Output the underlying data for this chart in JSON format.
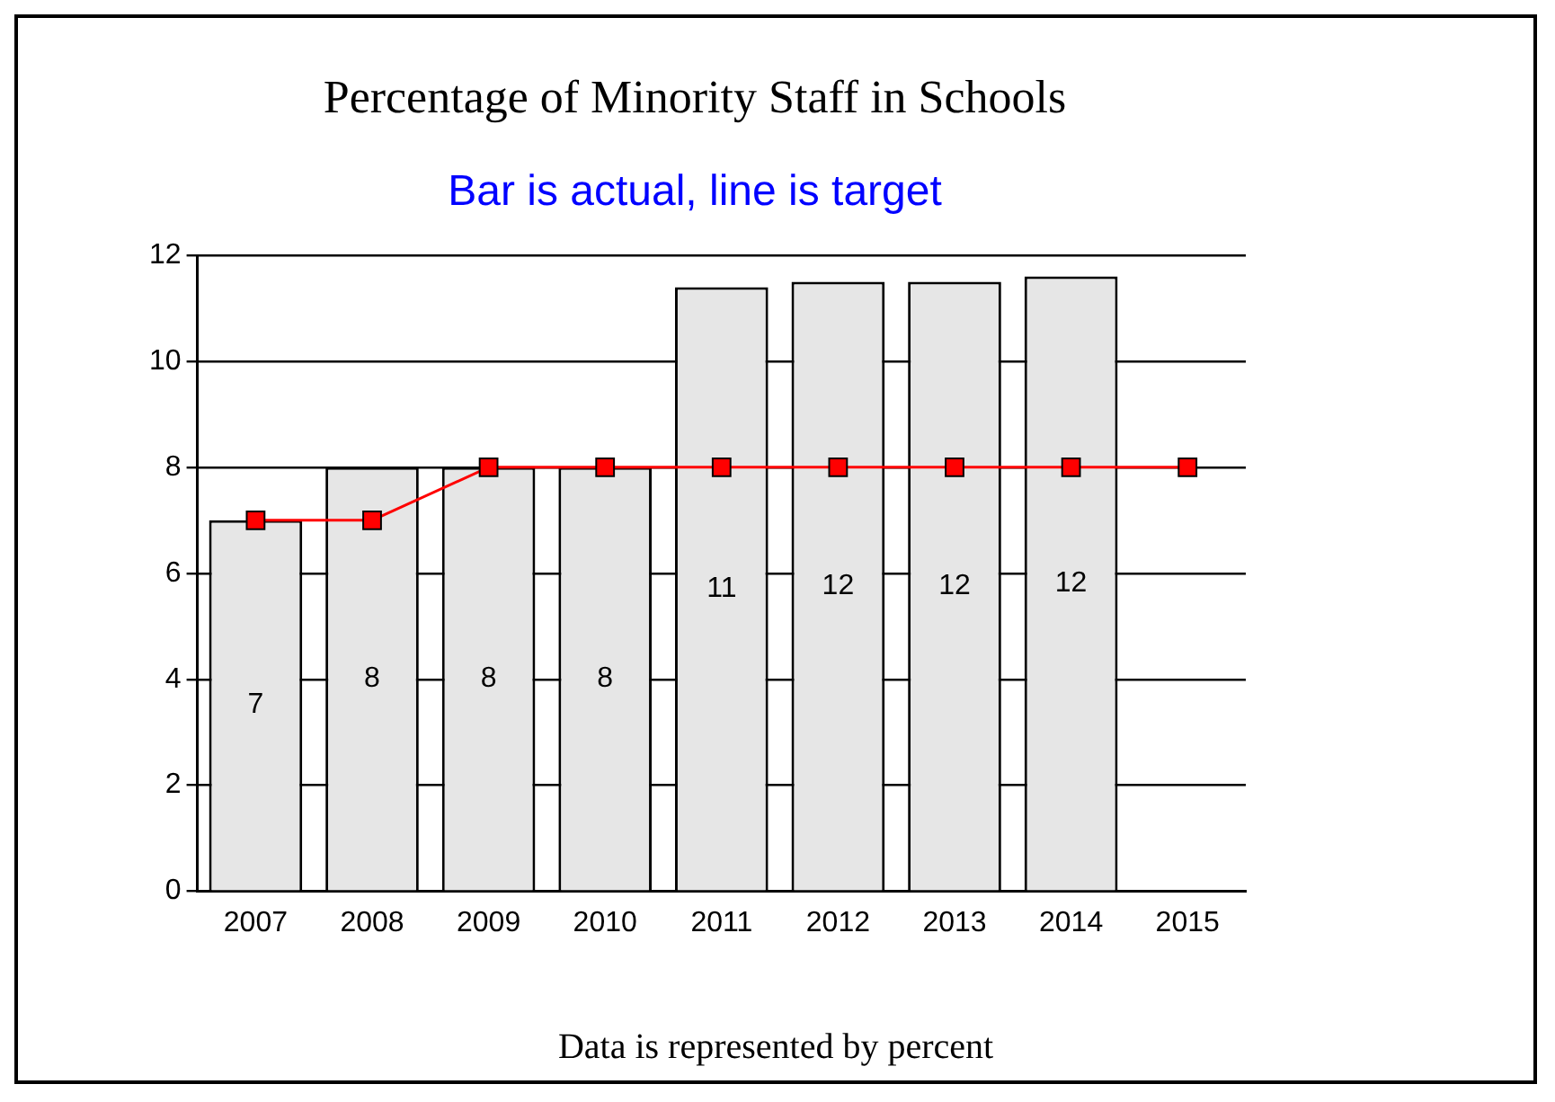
{
  "chart_data": {
    "type": "bar",
    "title": "Percentage of Minority Staff in Schools",
    "subtitle": "Bar is actual, line is target",
    "categories": [
      "2007",
      "2008",
      "2009",
      "2010",
      "2011",
      "2012",
      "2013",
      "2014",
      "2015"
    ],
    "series": [
      {
        "color": "#e6e6e6",
        "values": [
          7,
          8,
          8,
          8,
          11.4,
          11.5,
          11.5,
          11.6,
          null
        ],
        "value_labels": [
          "7",
          "8",
          "8",
          "8",
          "11",
          "12",
          "12",
          "12",
          null
        ]
      },
      {
        "type": "line",
        "color": "#ff0000",
        "values": [
          7,
          7,
          8,
          8,
          8,
          8,
          8,
          8,
          8
        ],
        "marker": "square"
      }
    ],
    "ylim": [
      0,
      12
    ],
    "yticks": [
      0,
      2,
      4,
      6,
      8,
      10,
      12
    ],
    "grid": "y",
    "legend": false,
    "annotations": [
      "Data is represented by percent"
    ]
  }
}
